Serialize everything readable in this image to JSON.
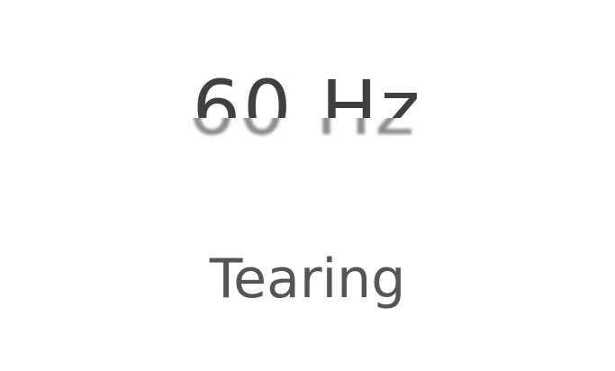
{
  "graphic": {
    "refresh_label": "60 Hz"
  },
  "caption": {
    "text": "Tearing"
  },
  "colors": {
    "background": "#ffffff",
    "text_dark": "#404040",
    "text_torn": "#7a7a7a",
    "caption": "#555555"
  }
}
